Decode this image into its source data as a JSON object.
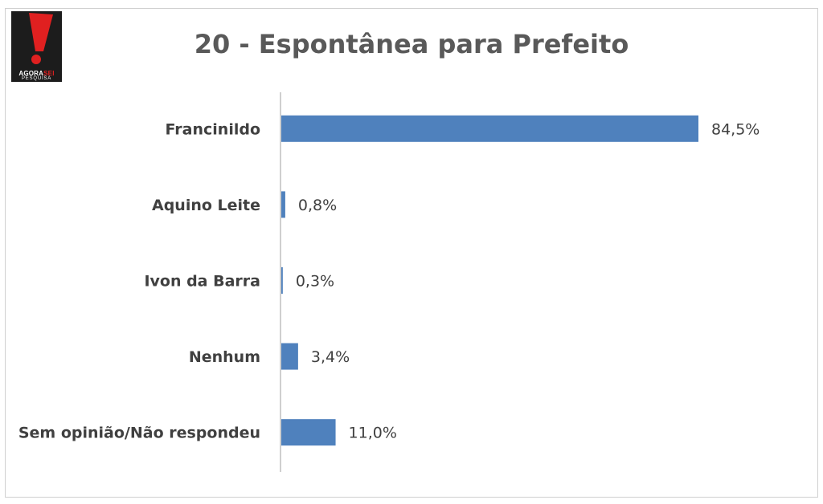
{
  "logo": {
    "line1_a": "AGORA",
    "line1_b": "SEI",
    "line2": "PESQUISA"
  },
  "chart_data": {
    "type": "bar",
    "orientation": "horizontal",
    "title": "20 - Espontânea para Prefeito",
    "categories": [
      "Francinildo",
      "Aquino Leite",
      "Ivon da Barra",
      "Nenhum",
      "Sem opinião/Não respondeu"
    ],
    "values": [
      84.5,
      0.8,
      0.3,
      3.4,
      11.0
    ],
    "value_labels": [
      "84,5%",
      "0,8%",
      "0,3%",
      "3,4%",
      "11,0%"
    ],
    "xlim": [
      0,
      100
    ],
    "grid": false,
    "legend": "none",
    "bar_color": "#4f81bd"
  }
}
